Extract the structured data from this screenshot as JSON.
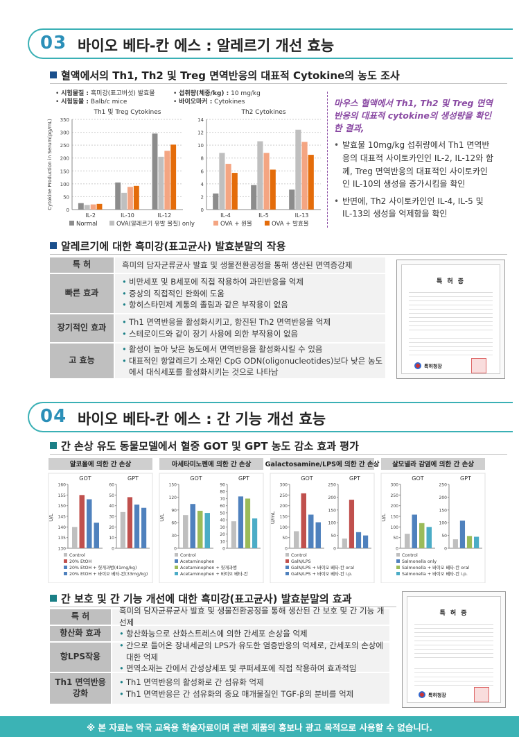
{
  "section03": {
    "number": "03",
    "title": "바이오 베타-칸 에스 : 알레르기 개선 효능",
    "sub1": "혈액에서의 Th1, Th2 및 Treg 면역반응의 대표적 Cytokine의 농도 조사",
    "meta": [
      {
        "label": "시험물질 :",
        "value": " 흑미강(표고버섯) 발효물"
      },
      {
        "label": "섭취량(체중/kg) :",
        "value": " 10 mg/kg"
      },
      {
        "label": "시험동물 :",
        "value": " Balb/c mice"
      },
      {
        "label": "바이오마커 :",
        "value": " Cytokines"
      }
    ],
    "side_lead": "마우스 혈액에서 Th1, Th2 및 Treg 면역 반응의 대표적 cytokine의 생성량을 확인한 결과,",
    "side_bullets": [
      "발효물 10mg/kg 섭취량에서 Th1 면역반응의 대표적 사이토카인인 IL-2, IL-12와 함께, Treg 면역반응의 대표적인 사이토카인인 IL-10의 생성을 증가시킴을 확인",
      "반면에, Th2 사이토카인인 IL-4, IL-5 및 IL-13의 생성을 억제함을 확인"
    ],
    "sub2": "알레르기에 대한 흑미강(표고균사) 발효분말의 작용",
    "table": [
      {
        "head": "특 허",
        "items": [
          "흑미의 담자균류균사 발효 및 생물전환공정을 통해 생산된 면역증강제"
        ]
      },
      {
        "head": "빠른 효과",
        "items": [
          "비만세포 및 B세포에 직접 작용하여 과민반응을 억제",
          "증상의 직접적인 완화에 도움",
          "항히스타민제 계통의 졸림과 같은 부작용이 없음"
        ]
      },
      {
        "head": "장기적인 효과",
        "items": [
          "Th1 면역반응을 활성화시키고, 항진된 Th2 면역반응을 억제",
          "스테로이드와 같이 장기 사용에 의한 부작용이 없음"
        ]
      },
      {
        "head": "고 효능",
        "items": [
          "활성이 높아 낮은 농도에서 면역반응을 활성화시킬 수 있음",
          "대표적인 항알레르기 소재인 CpG ODN(oligonucleotides)보다 낮은 농도에서 대식세포를 활성화시키는 것으로 나타남"
        ]
      }
    ]
  },
  "section04": {
    "number": "04",
    "title": "바이오 베타-칸 에스 : 간 기능 개선 효능",
    "sub1": "간 손상 유도 동물모델에서 혈중 GOT 및 GPT 농도 감소 효과 평가",
    "sub2": "간 보호 및 간 기능 개선에 대한 흑미강(표고균사) 발효분말의 효과",
    "table": [
      {
        "head": "특 허",
        "items": [
          "흑미의 담자균류균사 발효 및 생물전환공정을 통해 생산된 간 보호 및 간 기능 개선제"
        ]
      },
      {
        "head": "항산화 효과",
        "items": [
          "항산화능으로 산화스트레스에 의한 간세포 손상을 억제"
        ]
      },
      {
        "head": "항LPS작용",
        "items": [
          "간으로 들어온 장내세균의 LPS가 유도한 염증반응의 억제로, 간세포의 손상에 대한 억제",
          "면역소재는 간에서 간성상세포 및 쿠퍼세포에 직접 작용하여 효과적임"
        ]
      },
      {
        "head": "Th1 면역반응 강화",
        "items": [
          "Th1 면역반응의 활성화로 간 섬유화 억제",
          "Th1 면역반응은 간 섬유화의 중요 매개물질인 TGF-β의 분비를 억제"
        ]
      }
    ]
  },
  "patent": {
    "title": "특 허 증",
    "office": "특허청장"
  },
  "footer": "※ 본 자료는 약국 교육용 학술자료이며 관련 제품의 홍보나 광고 목적으로 사용할 수 없습니다.",
  "colors": {
    "teal": "#3ab0b5",
    "gray_bar": "#a6a6a6",
    "red_bar": "#c0504d",
    "blue_bar": "#4f81bd",
    "green_bar": "#9bbb59",
    "orange": "#f4a582",
    "dark_orange": "#e46c0a",
    "purple_text": "#8a4aa3"
  },
  "chart_data": [
    {
      "type": "bar",
      "title": "Th1 및 Treg Cytokines",
      "ylabel": "Cytokine Production in Serum(pg/mL)",
      "ylim": [
        0,
        350
      ],
      "yticks": [
        0,
        50,
        100,
        150,
        200,
        250,
        300,
        350
      ],
      "categories": [
        "IL-2",
        "IL-10",
        "IL-12"
      ],
      "series": [
        {
          "name": "Normal",
          "values": [
            25,
            105,
            295
          ]
        },
        {
          "name": "OVA(알레르기 유발 물질) only",
          "values": [
            18,
            65,
            205
          ]
        },
        {
          "name": "OVA + 원물",
          "values": [
            20,
            88,
            228
          ]
        },
        {
          "name": "OVA + 발효물",
          "values": [
            22,
            92,
            252
          ]
        }
      ]
    },
    {
      "type": "bar",
      "title": "Th2 Cytokines",
      "ylim": [
        0,
        14
      ],
      "yticks": [
        0,
        2,
        4,
        6,
        8,
        10,
        12,
        14
      ],
      "categories": [
        "IL-4",
        "IL-5",
        "IL-13"
      ],
      "series": [
        {
          "name": "Normal",
          "values": [
            2.5,
            3.8,
            3.1
          ]
        },
        {
          "name": "OVA(알레르기 유발 물질) only",
          "values": [
            8.8,
            10.6,
            12.4
          ]
        },
        {
          "name": "OVA + 원물",
          "values": [
            7.1,
            8.8,
            10.5
          ]
        },
        {
          "name": "OVA + 발효물",
          "values": [
            5.7,
            6.2,
            8.5
          ]
        }
      ]
    },
    {
      "type": "bar",
      "group": "알코올에 의한 간 손상",
      "title": "GOT",
      "ylabel": "U/L",
      "ylim": [
        130,
        160
      ],
      "yticks": [
        130,
        135,
        140,
        145,
        150,
        155,
        160
      ],
      "categories": [
        "Control",
        "20% EtOH",
        "20% EtOH + 헛개과병(41mg/kg)",
        "20% EtOH + 바이오 베타-칸(33mg/kg)"
      ],
      "values": [
        140,
        155,
        153,
        142
      ]
    },
    {
      "type": "bar",
      "group": "알코올에 의한 간 손상",
      "title": "GPT",
      "ylim": [
        0,
        60
      ],
      "yticks": [
        0,
        10,
        20,
        30,
        40,
        50,
        60
      ],
      "categories": [
        "Control",
        "20% EtOH",
        "20% EtOH + 헛개과병(41mg/kg)",
        "20% EtOH + 바이오 베타-칸(33mg/kg)"
      ],
      "values": [
        34,
        48,
        41,
        38
      ]
    },
    {
      "type": "bar",
      "group": "아세타미노펜에 의한 간 손상",
      "title": "GOT",
      "ylabel": "U/L",
      "ylim": [
        0,
        150
      ],
      "yticks": [
        0,
        30,
        60,
        90,
        120,
        150
      ],
      "categories": [
        "Control",
        "Acetaminophen",
        "Acetaminophen + 헛개과병",
        "Acetaminophen + 바이오 베타-칸"
      ],
      "values": [
        78,
        104,
        88,
        83
      ]
    },
    {
      "type": "bar",
      "group": "아세타미노펜에 의한 간 손상",
      "title": "GPT",
      "ylim": [
        0,
        90
      ],
      "yticks": [
        0,
        10,
        20,
        30,
        40,
        50,
        60,
        70,
        80,
        90
      ],
      "categories": [
        "Control",
        "Acetaminophen",
        "Acetaminophen + 헛개과병",
        "Acetaminophen + 바이오 베타-칸"
      ],
      "values": [
        38,
        73,
        70,
        42
      ]
    },
    {
      "type": "bar",
      "group": "Galactosamine/LPS에 의한 간 손상",
      "title": "GOT",
      "ylabel": "U/mL",
      "ylim": [
        0,
        300
      ],
      "yticks": [
        0,
        50,
        100,
        150,
        200,
        250,
        300
      ],
      "categories": [
        "Control",
        "GalN/LPS",
        "GalN/LPS + 바이오 베타-칸 oral",
        "GalN/LPS + 바이오 베타-칸 i.p."
      ],
      "values": [
        80,
        258,
        158,
        122
      ]
    },
    {
      "type": "bar",
      "group": "Galactosamine/LPS에 의한 간 손상",
      "title": "GPT",
      "ylim": [
        0,
        250
      ],
      "yticks": [
        0,
        50,
        100,
        150,
        200,
        250
      ],
      "categories": [
        "Control",
        "GalN/LPS",
        "GalN/LPS + 바이오 베타-칸 oral",
        "GalN/LPS + 바이오 베타-칸 i.p."
      ],
      "values": [
        38,
        190,
        63,
        50
      ]
    },
    {
      "type": "bar",
      "group": "살모넬라 감염에 의한 간 손상",
      "title": "GOT",
      "ylabel": "U/L",
      "ylim": [
        0,
        300
      ],
      "yticks": [
        0,
        50,
        100,
        150,
        200,
        250,
        300
      ],
      "categories": [
        "Control",
        "Salmonella only",
        "Salmonella + 바이오 베타-칸 oral",
        "Salmonella + 바이오 베타-칸 i.p."
      ],
      "values": [
        68,
        158,
        118,
        100
      ]
    },
    {
      "type": "bar",
      "group": "살모넬라 감염에 의한 간 손상",
      "title": "GPT",
      "ylim": [
        0,
        250
      ],
      "yticks": [
        0,
        50,
        100,
        150,
        200,
        250
      ],
      "categories": [
        "Control",
        "Salmonella only",
        "Salmonella + 바이오 베타-칸 oral",
        "Salmonella + 바이오 베타-칸 i.p."
      ],
      "values": [
        35,
        108,
        48,
        45
      ]
    }
  ]
}
